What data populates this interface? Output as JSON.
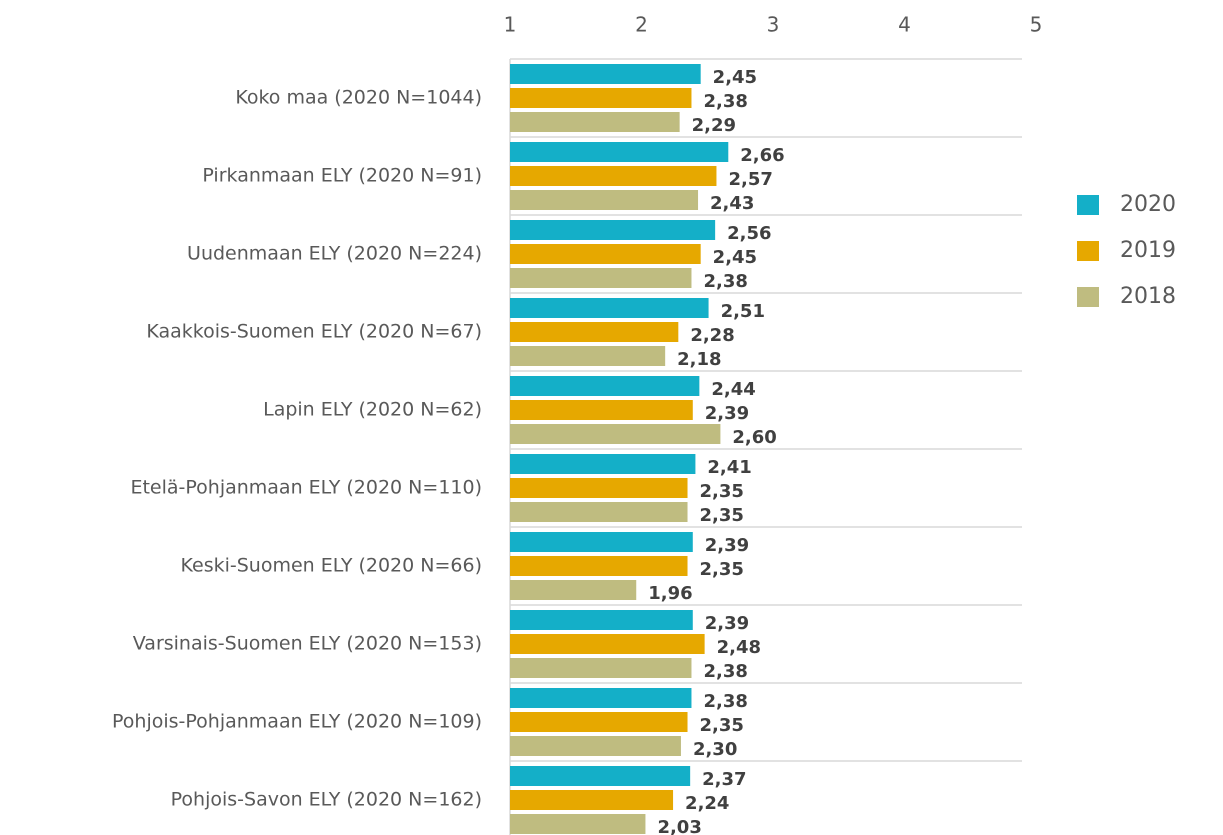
{
  "chart_data": {
    "type": "bar",
    "orientation": "horizontal",
    "categories": [
      "Koko maa (2020 N=1044)",
      "Pirkanmaan ELY (2020 N=91)",
      "Uudenmaan ELY (2020 N=224)",
      "Kaakkois-Suomen ELY (2020 N=67)",
      "Lapin ELY (2020 N=62)",
      "Etelä-Pohjanmaan ELY (2020 N=110)",
      "Keski-Suomen ELY (2020 N=66)",
      "Varsinais-Suomen ELY (2020 N=153)",
      "Pohjois-Pohjanmaan ELY (2020 N=109)",
      "Pohjois-Savon ELY (2020 N=162)"
    ],
    "series": [
      {
        "name": "2020",
        "color": "#14afc8",
        "values": [
          2.45,
          2.66,
          2.56,
          2.51,
          2.44,
          2.41,
          2.39,
          2.39,
          2.38,
          2.37
        ],
        "value_labels": [
          "2,45",
          "2,66",
          "2,56",
          "2,51",
          "2,44",
          "2,41",
          "2,39",
          "2,39",
          "2,38",
          "2,37"
        ]
      },
      {
        "name": "2019",
        "color": "#e6a800",
        "values": [
          2.38,
          2.57,
          2.45,
          2.28,
          2.39,
          2.35,
          2.35,
          2.48,
          2.35,
          2.24
        ],
        "value_labels": [
          "2,38",
          "2,57",
          "2,45",
          "2,28",
          "2,39",
          "2,35",
          "2,35",
          "2,48",
          "2,35",
          "2,24"
        ]
      },
      {
        "name": "2018",
        "color": "#bfbc80",
        "values": [
          2.29,
          2.43,
          2.38,
          2.18,
          2.6,
          2.35,
          1.96,
          2.38,
          2.3,
          2.03
        ],
        "value_labels": [
          "2,29",
          "2,43",
          "2,38",
          "2,18",
          "2,60",
          "2,35",
          "1,96",
          "2,38",
          "2,30",
          "2,03"
        ]
      }
    ],
    "xlim": [
      1,
      5
    ],
    "xticks": [
      1,
      2,
      3,
      4,
      5
    ],
    "legend": "right"
  }
}
